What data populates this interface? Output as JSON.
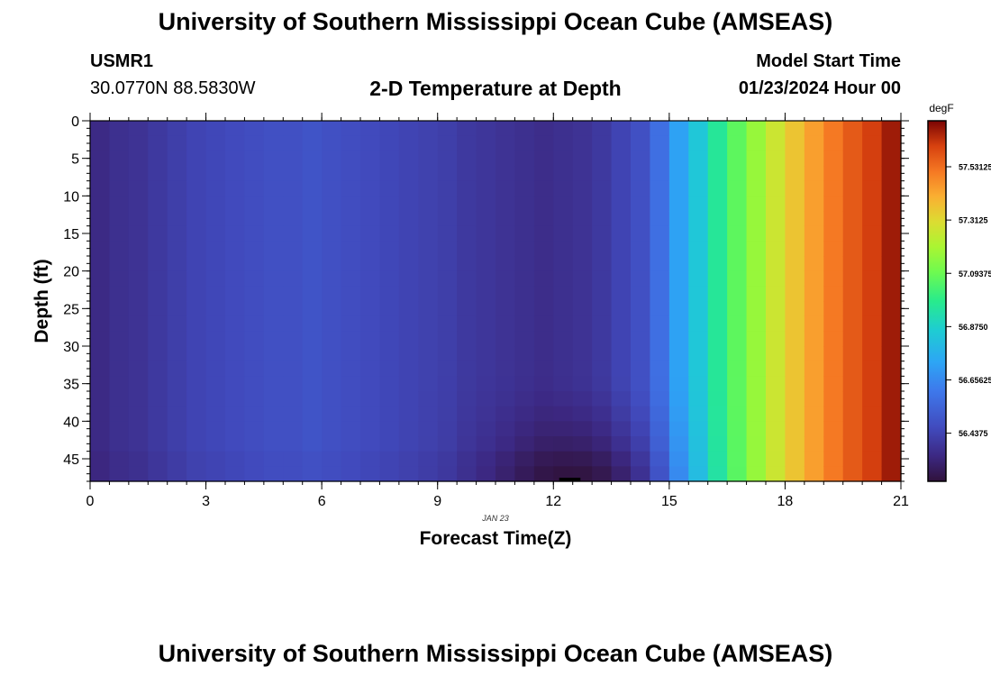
{
  "page": {
    "title": "University of Southern Mississippi Ocean Cube (AMSEAS)",
    "station_id": "USMR1",
    "coords": "30.0770N  88.5830W",
    "subtitle": "2-D Temperature at Depth",
    "model_start_label": "Model Start Time",
    "model_start_value": "01/23/2024 Hour 00",
    "footer_title": "University of Southern Mississippi Ocean Cube (AMSEAS)"
  },
  "chart_data": {
    "type": "heatmap",
    "title": "2-D Temperature at Depth",
    "xlabel": "Forecast Time(Z)",
    "ylabel": "Depth (ft)",
    "date_label": "JAN 23",
    "x_ticks": [
      0,
      3,
      6,
      9,
      12,
      15,
      18,
      21
    ],
    "x_tick_labels": [
      "0",
      "3",
      "6",
      "9",
      "12",
      "15",
      "18",
      "21"
    ],
    "y_ticks": [
      0,
      5,
      10,
      15,
      20,
      25,
      30,
      35,
      40,
      45
    ],
    "y_tick_labels": [
      "0",
      "5",
      "10",
      "15",
      "20",
      "25",
      "30",
      "35",
      "40",
      "45"
    ],
    "xlim": [
      0,
      21
    ],
    "ylim": [
      0,
      48
    ],
    "y_reversed": true,
    "colorbar": {
      "unit": "degF",
      "range": [
        56.24,
        57.72
      ],
      "tick_values": [
        56.4375,
        56.65625,
        56.875,
        57.09375,
        57.3125,
        57.53125
      ],
      "tick_labels": [
        "56.4375",
        "56.65625",
        "56.8750",
        "57.09375",
        "57.3125",
        "57.53125"
      ],
      "colormap": "turbo"
    },
    "time_hours": [
      0,
      0.5,
      1,
      1.5,
      2,
      2.5,
      3,
      3.5,
      4,
      4.5,
      5,
      5.5,
      6,
      6.5,
      7,
      7.5,
      8,
      8.5,
      9,
      9.5,
      10,
      10.5,
      11,
      11.5,
      12,
      12.5,
      13,
      13.5,
      14,
      14.5,
      15,
      15.5,
      16,
      16.5,
      17,
      17.5,
      18,
      18.5,
      19,
      19.5,
      20,
      20.5
    ],
    "surface_temps_degF": [
      56.35,
      56.37,
      56.38,
      56.4,
      56.42,
      56.44,
      56.45,
      56.46,
      56.47,
      56.48,
      56.48,
      56.49,
      56.48,
      56.47,
      56.46,
      56.45,
      56.44,
      56.43,
      56.42,
      56.4,
      56.39,
      56.38,
      56.37,
      56.36,
      56.37,
      56.38,
      56.4,
      56.44,
      56.48,
      56.58,
      56.72,
      56.84,
      56.96,
      57.07,
      57.17,
      57.27,
      57.36,
      57.44,
      57.51,
      57.57,
      57.62,
      57.68
    ],
    "bottom_anomaly": {
      "center_hour": 12.5,
      "min_temp_degF": 56.24,
      "note": "cooler water near bottom around 10–14Z"
    }
  }
}
